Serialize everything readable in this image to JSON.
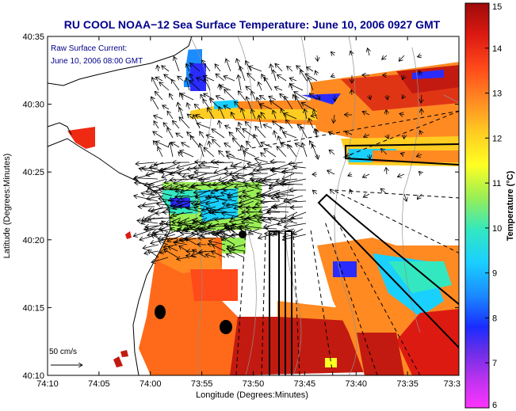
{
  "title": "RU COOL  NOAA−12  Sea Surface Temperature:  June 10, 2006 0927 GMT",
  "annotation": {
    "line1": "Raw Surface Current:",
    "line2": "June 10, 2006 08:00 GMT"
  },
  "scale_label": "50 cm/s",
  "x_axis": {
    "label": "Longitude (Degrees:Minutes)",
    "ticks": [
      "74:10",
      "74:05",
      "74:00",
      "73:55",
      "73:50",
      "73:45",
      "73:40",
      "73:35",
      "73:3"
    ]
  },
  "y_axis": {
    "label": "Latitude (Degrees:Minutes)",
    "ticks": [
      "40:35",
      "40:30",
      "40:25",
      "40:20",
      "40:15",
      "40:10"
    ]
  },
  "colorbar": {
    "label": "Temperature (°C)",
    "min": 6,
    "max": 15,
    "ticks": [
      "15",
      "14",
      "13",
      "12",
      "11",
      "10",
      "9",
      "8",
      "7",
      "6"
    ]
  },
  "colors": {
    "title": "#00008b",
    "annotation": "#00008b",
    "land": "#ffffff",
    "frame": "#000000"
  }
}
